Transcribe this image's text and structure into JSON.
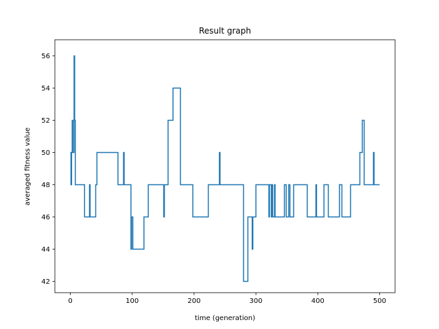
{
  "chart_data": {
    "type": "line",
    "title": "Result graph",
    "xlabel": "time (generation)",
    "ylabel": "averaged fitness value",
    "xlim": [
      -25,
      525
    ],
    "ylim": [
      41.3,
      57.0
    ],
    "xticks": [
      0,
      100,
      200,
      300,
      400,
      500
    ],
    "yticks": [
      42,
      44,
      46,
      48,
      50,
      52,
      54,
      56
    ],
    "grid": false,
    "line_color": "#1f77b4",
    "step": true,
    "series": [
      {
        "values": [
          [
            0,
            50
          ],
          [
            1,
            48
          ],
          [
            2,
            50
          ],
          [
            3,
            52
          ],
          [
            4,
            50
          ],
          [
            5,
            50
          ],
          [
            6,
            56
          ],
          [
            7,
            52
          ],
          [
            8,
            48
          ],
          [
            22,
            48
          ],
          [
            23,
            46
          ],
          [
            30,
            46
          ],
          [
            31,
            48
          ],
          [
            32,
            46
          ],
          [
            40,
            46
          ],
          [
            41,
            48
          ],
          [
            43,
            50
          ],
          [
            76,
            50
          ],
          [
            77,
            48
          ],
          [
            85,
            48
          ],
          [
            86,
            50
          ],
          [
            87,
            48
          ],
          [
            97,
            48
          ],
          [
            98,
            44
          ],
          [
            99,
            46
          ],
          [
            100,
            46
          ],
          [
            101,
            44
          ],
          [
            118,
            44
          ],
          [
            119,
            46
          ],
          [
            125,
            46
          ],
          [
            126,
            48
          ],
          [
            150,
            48
          ],
          [
            151,
            46
          ],
          [
            152,
            48
          ],
          [
            157,
            48
          ],
          [
            158,
            52
          ],
          [
            165,
            52
          ],
          [
            166,
            54
          ],
          [
            177,
            54
          ],
          [
            178,
            48
          ],
          [
            197,
            48
          ],
          [
            198,
            46
          ],
          [
            222,
            46
          ],
          [
            223,
            48
          ],
          [
            240,
            48
          ],
          [
            241,
            50
          ],
          [
            242,
            48
          ],
          [
            279,
            48
          ],
          [
            280,
            42
          ],
          [
            286,
            42
          ],
          [
            287,
            46
          ],
          [
            293,
            46
          ],
          [
            294,
            44
          ],
          [
            295,
            46
          ],
          [
            299,
            46
          ],
          [
            300,
            48
          ],
          [
            320,
            48
          ],
          [
            321,
            46
          ],
          [
            322,
            48
          ],
          [
            324,
            48
          ],
          [
            325,
            46
          ],
          [
            326,
            48
          ],
          [
            327,
            46
          ],
          [
            329,
            46
          ],
          [
            330,
            48
          ],
          [
            331,
            46
          ],
          [
            345,
            46
          ],
          [
            346,
            48
          ],
          [
            348,
            48
          ],
          [
            349,
            46
          ],
          [
            352,
            46
          ],
          [
            353,
            48
          ],
          [
            355,
            46
          ],
          [
            360,
            46
          ],
          [
            361,
            48
          ],
          [
            382,
            48
          ],
          [
            383,
            46
          ],
          [
            396,
            46
          ],
          [
            397,
            48
          ],
          [
            398,
            46
          ],
          [
            409,
            46
          ],
          [
            410,
            48
          ],
          [
            416,
            48
          ],
          [
            417,
            46
          ],
          [
            434,
            46
          ],
          [
            435,
            48
          ],
          [
            438,
            48
          ],
          [
            439,
            46
          ],
          [
            452,
            46
          ],
          [
            453,
            48
          ],
          [
            467,
            48
          ],
          [
            468,
            50
          ],
          [
            471,
            50
          ],
          [
            472,
            52
          ],
          [
            474,
            52
          ],
          [
            475,
            48
          ],
          [
            489,
            48
          ],
          [
            490,
            50
          ],
          [
            491,
            48
          ],
          [
            500,
            48
          ]
        ]
      }
    ]
  }
}
